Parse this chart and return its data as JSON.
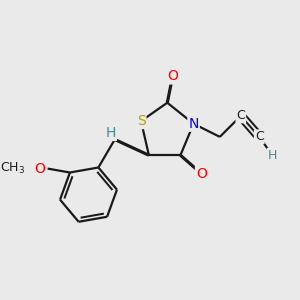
{
  "bg_color": "#eaeaea",
  "atom_colors": {
    "S": "#b8a000",
    "N": "#0000ff",
    "O": "#ff0000",
    "C": "#1a1a1a",
    "H": "#4a8a8a"
  },
  "bond_color": "#1a1a1a",
  "line_width": 1.6,
  "font_size": 10,
  "small_font": 9
}
